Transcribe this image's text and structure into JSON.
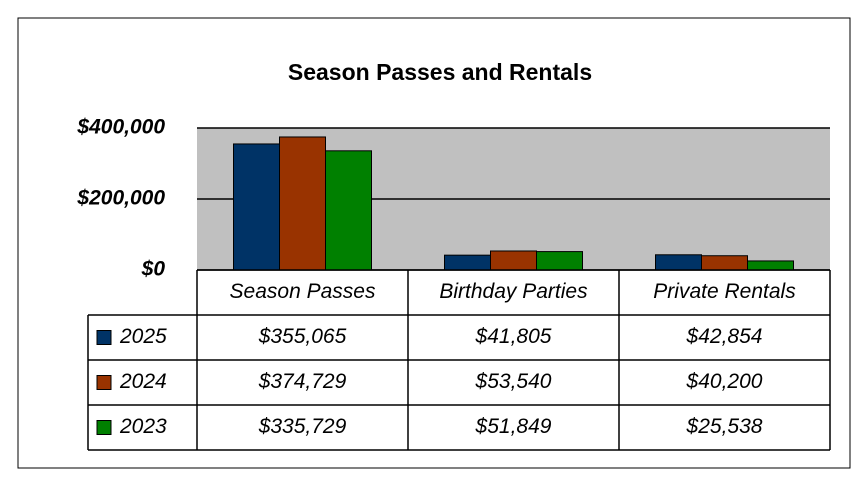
{
  "chart_data": {
    "type": "bar",
    "title": "Season Passes and Rentals",
    "categories": [
      "Season Passes",
      "Birthday Parties",
      "Private Rentals"
    ],
    "series": [
      {
        "name": "2025",
        "color": "#003366",
        "values": [
          355065,
          41805,
          42854
        ],
        "value_labels": [
          "$355,065",
          "$41,805",
          "$42,854"
        ]
      },
      {
        "name": "2024",
        "color": "#993300",
        "values": [
          374729,
          53540,
          40200
        ],
        "value_labels": [
          "$374,729",
          "$53,540",
          "$40,200"
        ]
      },
      {
        "name": "2023",
        "color": "#008000",
        "values": [
          335729,
          51849,
          25538
        ],
        "value_labels": [
          "$335,729",
          "$51,849",
          "$25,538"
        ]
      }
    ],
    "ylim": [
      0,
      400000
    ],
    "yticks": [
      {
        "value": 0,
        "label": "$0"
      },
      {
        "value": 200000,
        "label": "$200,000"
      },
      {
        "value": 400000,
        "label": "$400,000"
      }
    ],
    "grid": true,
    "plot_background": "#c0c0c0"
  }
}
